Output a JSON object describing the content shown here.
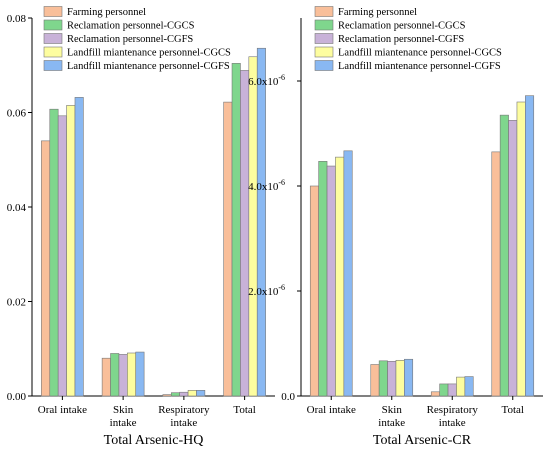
{
  "colors": {
    "series": [
      "#f9bf9a",
      "#7fd68d",
      "#c8b2d8",
      "#fdfd9f",
      "#89b8f2"
    ],
    "bar_stroke": "#777777"
  },
  "chart_data": [
    {
      "type": "bar",
      "xlabel": "Total Arsenic-HQ",
      "ylabel": "",
      "categories": [
        [
          "Oral intake"
        ],
        [
          "Skin",
          "intake"
        ],
        [
          "Respiratory",
          "intake"
        ],
        [
          "Total"
        ]
      ],
      "ylim": [
        0,
        0.08
      ],
      "yticks": [
        "0.00",
        "0.02",
        "0.04",
        "0.06",
        "0.08"
      ],
      "ytick_values": [
        0,
        0.02,
        0.04,
        0.06,
        0.08
      ],
      "legend_position": "top-left",
      "series": [
        {
          "name": "Farming personnel",
          "values": [
            0.054,
            0.008,
            0.0003,
            0.0622
          ]
        },
        {
          "name": "Reclamation personnel-CGCS",
          "values": [
            0.0607,
            0.009,
            0.0007,
            0.0704
          ]
        },
        {
          "name": "Reclamation personnel-CGFS",
          "values": [
            0.0593,
            0.0088,
            0.0008,
            0.0689
          ]
        },
        {
          "name": "Landfill miantenance personnel-CGCS",
          "values": [
            0.0615,
            0.0091,
            0.0012,
            0.0718
          ]
        },
        {
          "name": "Landfill miantenance personnel-CGFS",
          "values": [
            0.0632,
            0.0093,
            0.0012,
            0.0736
          ]
        }
      ]
    },
    {
      "type": "bar",
      "xlabel": "Total Arsenic-CR",
      "ylabel": "",
      "categories": [
        [
          "Oral intake"
        ],
        [
          "Skin",
          "intake"
        ],
        [
          "Respiratory",
          "intake"
        ],
        [
          "Total"
        ]
      ],
      "ylim": [
        0,
        7.2e-06
      ],
      "yticks": [
        [
          "0.0",
          ""
        ],
        [
          "2.0x10",
          "-6"
        ],
        [
          "4.0x10",
          "-6"
        ],
        [
          "6.0x10",
          "-6"
        ]
      ],
      "ytick_values": [
        0,
        2e-06,
        4e-06,
        6e-06
      ],
      "legend_position": "top-left",
      "series": [
        {
          "name": "Farming personnel",
          "values": [
            4e-06,
            6e-07,
            8e-08,
            4.65e-06
          ]
        },
        {
          "name": "Reclamation personnel-CGCS",
          "values": [
            4.47e-06,
            6.7e-07,
            2.3e-07,
            5.35e-06
          ]
        },
        {
          "name": "Reclamation personnel-CGFS",
          "values": [
            4.38e-06,
            6.6e-07,
            2.3e-07,
            5.25e-06
          ]
        },
        {
          "name": "Landfill miantenance personnel-CGCS",
          "values": [
            4.55e-06,
            6.8e-07,
            3.6e-07,
            5.6e-06
          ]
        },
        {
          "name": "Landfill miantenance personnel-CGFS",
          "values": [
            4.67e-06,
            7e-07,
            3.7e-07,
            5.72e-06
          ]
        }
      ]
    }
  ]
}
